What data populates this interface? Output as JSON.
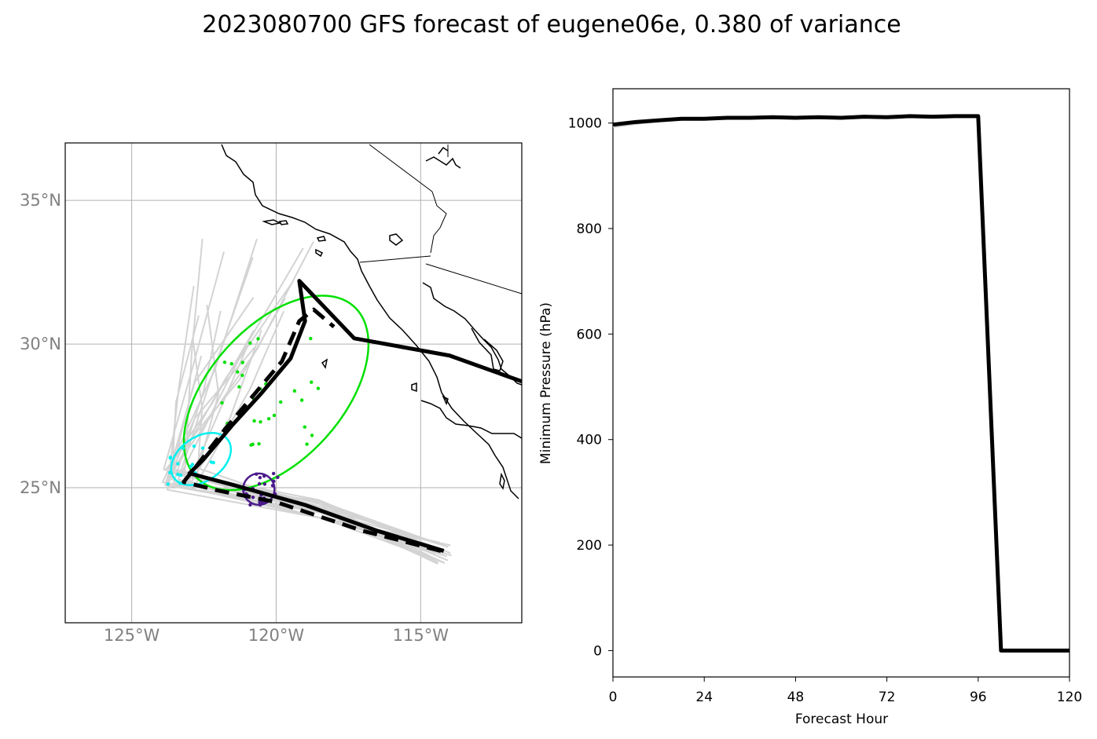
{
  "title": "2023080700 GFS forecast of eugene06e, 0.380 of variance",
  "map": {
    "lon_range": [
      -127.3,
      -111.5
    ],
    "lat_range": [
      20.3,
      37.0
    ],
    "lon_ticks": [
      {
        "value": -125,
        "label": "125°W"
      },
      {
        "value": -120,
        "label": "120°W"
      },
      {
        "value": -115,
        "label": "115°W"
      }
    ],
    "lat_ticks": [
      {
        "value": 35,
        "label": "35°N"
      },
      {
        "value": 30,
        "label": "30°N"
      },
      {
        "value": 25,
        "label": "25°N"
      }
    ],
    "grid": true,
    "colors": {
      "ensemble": "#d3d3d3",
      "mean": "#000000",
      "cluster_green": "#00e000",
      "cluster_cyan": "#00f0f0",
      "cluster_purple": "#4b1a8c"
    }
  },
  "chart_data": [
    {
      "type": "line",
      "panel": "track map",
      "series": [
        {
          "style": "solid",
          "points": [
            [
              -114.2,
              22.8
            ],
            [
              -116.5,
              23.5
            ],
            [
              -119.0,
              24.4
            ],
            [
              -121.5,
              25.1
            ],
            [
              -123.0,
              25.5
            ],
            [
              -122.5,
              26.0
            ],
            [
              -121.5,
              27.2
            ],
            [
              -120.5,
              28.3
            ],
            [
              -119.5,
              29.5
            ],
            [
              -119.0,
              30.8
            ],
            [
              -119.2,
              32.2
            ],
            [
              -117.3,
              30.2
            ],
            [
              -114.0,
              29.6
            ],
            [
              -111.5,
              28.7
            ]
          ]
        },
        {
          "style": "dashed",
          "points": [
            [
              -114.3,
              22.8
            ],
            [
              -117.0,
              23.5
            ],
            [
              -120.0,
              24.5
            ],
            [
              -122.0,
              24.9
            ],
            [
              -123.2,
              25.2
            ],
            [
              -122.8,
              25.7
            ],
            [
              -121.8,
              27.0
            ],
            [
              -120.8,
              28.2
            ],
            [
              -119.8,
              29.4
            ],
            [
              -119.2,
              30.8
            ],
            [
              -118.7,
              31.2
            ],
            [
              -118.0,
              30.6
            ]
          ]
        }
      ]
    },
    {
      "type": "line",
      "panel": "minimum pressure",
      "xlabel": "Forecast Hour",
      "ylabel": "Minimum Pressure (hPa)",
      "xlim": [
        0,
        120
      ],
      "ylim": [
        -50,
        1065
      ],
      "xticks": [
        0,
        24,
        48,
        72,
        96,
        120
      ],
      "yticks": [
        0,
        200,
        400,
        600,
        800,
        1000
      ],
      "x": [
        0,
        6,
        12,
        18,
        24,
        30,
        36,
        42,
        48,
        54,
        60,
        66,
        72,
        78,
        84,
        90,
        96,
        102,
        108,
        114,
        120
      ],
      "series": [
        {
          "values": [
            997,
            1002,
            1005,
            1008,
            1008,
            1010,
            1010,
            1011,
            1010,
            1011,
            1010,
            1012,
            1011,
            1013,
            1012,
            1013,
            1013,
            0,
            0,
            0,
            0
          ]
        }
      ]
    }
  ]
}
